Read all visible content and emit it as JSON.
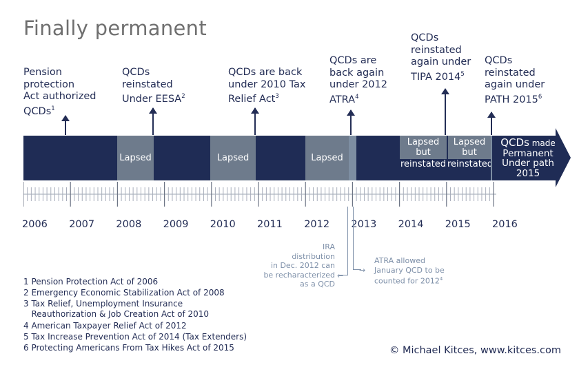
{
  "title": "Finally permanent",
  "callouts": [
    {
      "l1": "Pension",
      "l2": "protection",
      "l3": "Act authorized",
      "l4": "QCDs",
      "sup": "1"
    },
    {
      "l1": "QCDs",
      "l2": "reinstated",
      "l3": "Under EESA",
      "sup": "2"
    },
    {
      "l1": "QCDs are back",
      "l2": "under 2010 Tax",
      "l3": "Relief Act",
      "sup": "3"
    },
    {
      "l1": "QCDs are",
      "l2": "back again",
      "l3": "under 2012",
      "l4": "ATRA",
      "sup": "4"
    },
    {
      "l1": "QCDs",
      "l2": "reinstated",
      "l3": "again under",
      "l4": "TIPA 2014",
      "sup": "5"
    },
    {
      "l1": "QCDs",
      "l2": "reinstated",
      "l3": "again under",
      "l4": "PATH 2015",
      "sup": "6"
    }
  ],
  "segments": {
    "lapsed1": "Lapsed",
    "lapsed2": "Lapsed",
    "lapsed3": "Lapsed",
    "lapsed4_l1": "Lapsed",
    "lapsed4_l2": "but",
    "lapsed4_l3": "reinstated",
    "lapsed5_l1": "Lapsed",
    "lapsed5_l2": "but",
    "lapsed5_l3": "reinstated"
  },
  "arrow": {
    "l1a": "QCDs",
    "l1b": " made",
    "l2": "Permanent",
    "l3": "Under path",
    "l4": "2015"
  },
  "years": [
    "2006",
    "2007",
    "2008",
    "2009",
    "2010",
    "2011",
    "2012",
    "2013",
    "2014",
    "2015",
    "2016"
  ],
  "notes": {
    "left": [
      "IRA",
      "distribution",
      "in Dec. 2012 can",
      "be recharacterized",
      "as a QCD"
    ],
    "right": [
      "ATRA allowed",
      "January QCD to be",
      "counted for 2012"
    ],
    "right_sup": "4"
  },
  "footnotes": [
    "1 Pension Protection Act of 2006",
    "2 Emergency Economic Stabilization Act of 2008",
    "3 Tax Relief, Unemployment Insurance",
    "   Reauthorization & Job Creation Act of 2010",
    "4 American Taxpayer Relief Act of 2012",
    "5 Tax Increase Prevention Act of 2014 (Tax Extenders)",
    "6 Protecting Americans From Tax Hikes Act of 2015"
  ],
  "credit": "© Michael Kitces, www.kitces.com",
  "colors": {
    "navy": "#1f2c55",
    "lapsed": "#6e7b8c",
    "note": "#7d8fa8",
    "title": "#6f6f6f"
  }
}
